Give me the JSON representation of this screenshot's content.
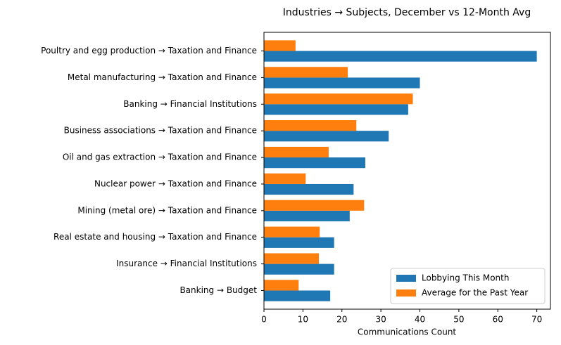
{
  "chart_data": {
    "type": "barh",
    "title": "Industries → Subjects, December vs 12-Month Avg",
    "xlabel": "Communications Count",
    "categories": [
      "Poultry and egg production → Taxation and Finance",
      "Metal manufacturing → Taxation and Finance",
      "Banking → Financial Institutions",
      "Business associations → Taxation and Finance",
      "Oil and gas extraction → Taxation and Finance",
      "Nuclear power → Taxation and Finance",
      "Mining (metal ore) → Taxation and Finance",
      "Real estate and housing → Taxation and Finance",
      "Insurance → Financial Institutions",
      "Banking → Budget"
    ],
    "series": [
      {
        "name": "Lobbying This Month",
        "color": "#1f77b4",
        "values": [
          70,
          40,
          37,
          32,
          26,
          23,
          22,
          18,
          18,
          17
        ]
      },
      {
        "name": "Average for the Past Year",
        "color": "#ff7f0e",
        "values": [
          8.1,
          21.5,
          38.2,
          23.7,
          16.6,
          10.7,
          25.7,
          14.3,
          14.1,
          8.9
        ]
      }
    ],
    "xlim": [
      0,
      73.5
    ],
    "xticks": [
      0,
      10,
      20,
      30,
      40,
      50,
      60,
      70
    ],
    "legend": "lower right"
  }
}
